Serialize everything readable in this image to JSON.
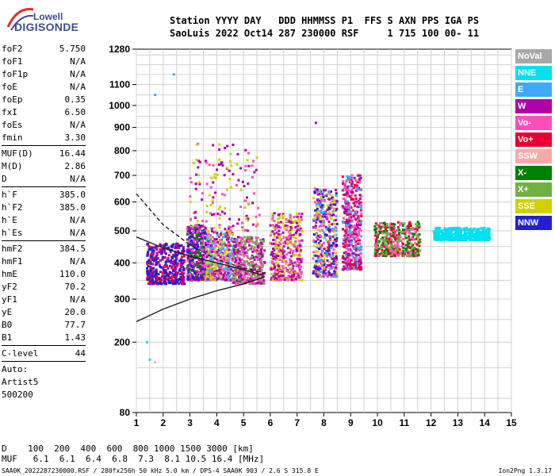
{
  "logo": {
    "line1": "Lowell",
    "line2": "DIGISONDE"
  },
  "header": {
    "line1": "Station YYYY DAY   DDD HHMMSS P1  FFS S AXN PPS IGA PS",
    "line2": "SaoLuis 2022 Oct14 287 230000 RSF     1 715 100 00- 11"
  },
  "params": {
    "group1": [
      {
        "label": "foF2",
        "value": "5.750"
      },
      {
        "label": "foF1",
        "value": "N/A"
      },
      {
        "label": "foF1p",
        "value": "N/A"
      },
      {
        "label": "foE",
        "value": "N/A"
      },
      {
        "label": "foEp",
        "value": "0.35"
      },
      {
        "label": "fxI",
        "value": "6.50"
      },
      {
        "label": "foEs",
        "value": "N/A"
      },
      {
        "label": "fmin",
        "value": "3.30"
      }
    ],
    "group2": [
      {
        "label": "MUF(D)",
        "value": "16.44"
      },
      {
        "label": "M(D)",
        "value": "2.86"
      },
      {
        "label": "D",
        "value": "N/A"
      }
    ],
    "group3": [
      {
        "label": "h`F",
        "value": "385.0"
      },
      {
        "label": "h`F2",
        "value": "385.0"
      },
      {
        "label": "h`E",
        "value": "N/A"
      },
      {
        "label": "h`Es",
        "value": "N/A"
      }
    ],
    "group4": [
      {
        "label": "hmF2",
        "value": "384.5"
      },
      {
        "label": "hmF1",
        "value": "N/A"
      },
      {
        "label": "hmE",
        "value": "110.0"
      },
      {
        "label": "yF2",
        "value": "70.2"
      },
      {
        "label": "yF1",
        "value": "N/A"
      },
      {
        "label": "yE",
        "value": "20.0"
      },
      {
        "label": "B0",
        "value": "77.7"
      },
      {
        "label": "B1",
        "value": "1.43"
      }
    ],
    "clevel": {
      "label": "C-level",
      "value": "44"
    },
    "auto": [
      "Auto:",
      "Artist5",
      "500200"
    ]
  },
  "legend": [
    {
      "label": "NoVal",
      "color": "#a8a8a8"
    },
    {
      "label": "NNE",
      "color": "#00e0f0"
    },
    {
      "label": "E",
      "color": "#40a8f8"
    },
    {
      "label": "W",
      "color": "#b000a8"
    },
    {
      "label": "Vo-",
      "color": "#f850b8"
    },
    {
      "label": "Vo+",
      "color": "#e80030"
    },
    {
      "label": "SSW",
      "color": "#f8a8a8"
    },
    {
      "label": "X-",
      "color": "#008000"
    },
    {
      "label": "X+",
      "color": "#70b040"
    },
    {
      "label": "SSE",
      "color": "#d0d000"
    },
    {
      "label": "NNW",
      "color": "#2020d0"
    }
  ],
  "bottom": {
    "line1": "D    100  200  400  600  800 1000 1500 3000 [km]",
    "line2": "MUF   6.1  6.1  6.4  6.8  7.3  8.1 10.5 16.4 [MHz]"
  },
  "footer": {
    "left": "SAA0K_2022287230000.RSF / 280fx256h 50 kHz 5.0 km / DPS-4 SAA0K 903 / 2.6 S 315.8 E",
    "right": "Ion2Png 1.3.17"
  },
  "chart_data": {
    "type": "scatter",
    "xlim": [
      1,
      15
    ],
    "ylim": [
      80,
      1280
    ],
    "x_ticks": [
      1,
      2,
      3,
      4,
      5,
      6,
      7,
      8,
      9,
      10,
      11,
      12,
      13,
      14,
      15
    ],
    "y_ticks": [
      80,
      200,
      300,
      400,
      500,
      600,
      700,
      800,
      900,
      1000,
      1100,
      1280
    ],
    "grid": true,
    "y_scale": "nonlinear (sqrt-like)",
    "xlabel": "",
    "ylabel": "",
    "clusters": [
      {
        "x": [
          1.4,
          2.8
        ],
        "y": [
          340,
          460
        ],
        "colors": [
          "#2020d0",
          "#2020d0",
          "#b000a8",
          "#e80030"
        ]
      },
      {
        "x": [
          2.9,
          3.6
        ],
        "y": [
          350,
          520
        ],
        "colors": [
          "#b000a8",
          "#f850b8",
          "#2020d0",
          "#008000"
        ]
      },
      {
        "x": [
          3.6,
          4.6
        ],
        "y": [
          350,
          500
        ],
        "colors": [
          "#f850b8",
          "#b000a8",
          "#d0d000",
          "#40a8f8"
        ]
      },
      {
        "x": [
          4.6,
          5.8
        ],
        "y": [
          340,
          480
        ],
        "colors": [
          "#b000a8",
          "#f850b8",
          "#70b040"
        ]
      },
      {
        "x": [
          6.0,
          7.2
        ],
        "y": [
          350,
          560
        ],
        "colors": [
          "#f850b8",
          "#b000a8",
          "#d0d000"
        ]
      },
      {
        "x": [
          7.6,
          8.5
        ],
        "y": [
          360,
          650
        ],
        "colors": [
          "#f850b8",
          "#40a8f8",
          "#b000a8",
          "#d0d000",
          "#2020d0"
        ]
      },
      {
        "x": [
          8.7,
          9.4
        ],
        "y": [
          380,
          700
        ],
        "colors": [
          "#f850b8",
          "#b000a8",
          "#40a8f8",
          "#e80030"
        ]
      },
      {
        "x": [
          9.9,
          11.6
        ],
        "y": [
          420,
          530
        ],
        "colors": [
          "#f850b8",
          "#008000",
          "#70b040",
          "#e80030"
        ]
      },
      {
        "x": [
          12.1,
          14.2
        ],
        "y": [
          470,
          510
        ],
        "colors": [
          "#00e0f0"
        ]
      },
      {
        "x": [
          3.0,
          5.6
        ],
        "y": [
          500,
          830
        ],
        "colors": [
          "#b000a8",
          "#f850b8",
          "#d0d000"
        ]
      }
    ],
    "curves": [
      {
        "name": "",
        "style": "solid",
        "points": [
          [
            1,
            245
          ],
          [
            2,
            275
          ],
          [
            3,
            300
          ],
          [
            4,
            322
          ],
          [
            5,
            340
          ],
          [
            5.8,
            360
          ]
        ]
      },
      {
        "name": "",
        "style": "dashed",
        "points": [
          [
            1,
            630
          ],
          [
            2,
            520
          ],
          [
            3,
            455
          ],
          [
            4,
            410
          ],
          [
            5,
            385
          ],
          [
            5.8,
            370
          ]
        ]
      },
      {
        "name": "",
        "style": "solid",
        "points": [
          [
            1,
            480
          ],
          [
            2,
            445
          ],
          [
            3,
            420
          ],
          [
            4,
            400
          ],
          [
            5,
            380
          ],
          [
            5.7,
            365
          ]
        ]
      }
    ]
  }
}
